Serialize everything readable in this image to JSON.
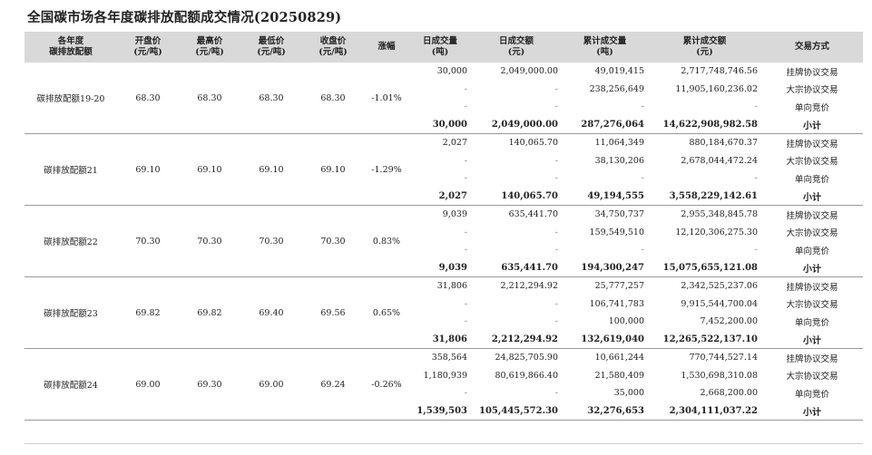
{
  "title": "全国碳市场各年度碳排放配额成交情况(20250829)",
  "header": {
    "product": [
      "各年度",
      "碳排放配额"
    ],
    "open": [
      "开盘价",
      "(元/吨)"
    ],
    "high": [
      "最高价",
      "(元/吨)"
    ],
    "low": [
      "最低价",
      "(元/吨)"
    ],
    "close": [
      "收盘价",
      "(元/吨)"
    ],
    "change": [
      "涨幅",
      ""
    ],
    "day_vol": [
      "日成交量",
      "(吨)"
    ],
    "day_amt": [
      "日成交额",
      "(元)"
    ],
    "cum_vol": [
      "累计成交量",
      "(吨)"
    ],
    "cum_amt": [
      "累计成交额",
      "(元)"
    ],
    "method": [
      "交易方式",
      ""
    ]
  },
  "groups": [
    {
      "product": "碳排放配额19-20",
      "open": "68.30",
      "high": "68.30",
      "low": "68.30",
      "close": "68.30",
      "change": "-1.01%",
      "rows": [
        {
          "day_vol": "30,000",
          "day_amt": "2,049,000.00",
          "cum_vol": "49,019,415",
          "cum_amt": "2,717,748,746.56",
          "method": "挂牌协议交易"
        },
        {
          "day_vol": "-",
          "day_amt": "-",
          "cum_vol": "238,256,649",
          "cum_amt": "11,905,160,236.02",
          "method": "大宗协议交易"
        },
        {
          "day_vol": "-",
          "day_amt": "-",
          "cum_vol": "-",
          "cum_amt": "-",
          "method": "单向竞价"
        },
        {
          "day_vol": "30,000",
          "day_amt": "2,049,000.00",
          "cum_vol": "287,276,064",
          "cum_amt": "14,622,908,982.58",
          "method": "小计"
        }
      ]
    },
    {
      "product": "碳排放配额21",
      "open": "69.10",
      "high": "69.10",
      "low": "69.10",
      "close": "69.10",
      "change": "-1.29%",
      "rows": [
        {
          "day_vol": "2,027",
          "day_amt": "140,065.70",
          "cum_vol": "11,064,349",
          "cum_amt": "880,184,670.37",
          "method": "挂牌协议交易"
        },
        {
          "day_vol": "-",
          "day_amt": "-",
          "cum_vol": "38,130,206",
          "cum_amt": "2,678,044,472.24",
          "method": "大宗协议交易"
        },
        {
          "day_vol": "-",
          "day_amt": "-",
          "cum_vol": "-",
          "cum_amt": "-",
          "method": "单向竞价"
        },
        {
          "day_vol": "2,027",
          "day_amt": "140,065.70",
          "cum_vol": "49,194,555",
          "cum_amt": "3,558,229,142.61",
          "method": "小计"
        }
      ]
    },
    {
      "product": "碳排放配额22",
      "open": "70.30",
      "high": "70.30",
      "low": "70.30",
      "close": "70.30",
      "change": "0.83%",
      "rows": [
        {
          "day_vol": "9,039",
          "day_amt": "635,441.70",
          "cum_vol": "34,750,737",
          "cum_amt": "2,955,348,845.78",
          "method": "挂牌协议交易"
        },
        {
          "day_vol": "-",
          "day_amt": "-",
          "cum_vol": "159,549,510",
          "cum_amt": "12,120,306,275.30",
          "method": "大宗协议交易"
        },
        {
          "day_vol": "-",
          "day_amt": "-",
          "cum_vol": "-",
          "cum_amt": "-",
          "method": "单向竞价"
        },
        {
          "day_vol": "9,039",
          "day_amt": "635,441.70",
          "cum_vol": "194,300,247",
          "cum_amt": "15,075,655,121.08",
          "method": "小计"
        }
      ]
    },
    {
      "product": "碳排放配额23",
      "open": "69.82",
      "high": "69.82",
      "low": "69.40",
      "close": "69.56",
      "change": "0.65%",
      "rows": [
        {
          "day_vol": "31,806",
          "day_amt": "2,212,294.92",
          "cum_vol": "25,777,257",
          "cum_amt": "2,342,525,237.06",
          "method": "挂牌协议交易"
        },
        {
          "day_vol": "-",
          "day_amt": "-",
          "cum_vol": "106,741,783",
          "cum_amt": "9,915,544,700.04",
          "method": "大宗协议交易"
        },
        {
          "day_vol": "-",
          "day_amt": "-",
          "cum_vol": "100,000",
          "cum_amt": "7,452,200.00",
          "method": "单向竞价"
        },
        {
          "day_vol": "31,806",
          "day_amt": "2,212,294.92",
          "cum_vol": "132,619,040",
          "cum_amt": "12,265,522,137.10",
          "method": "小计"
        }
      ]
    },
    {
      "product": "碳排放配额24",
      "open": "69.00",
      "high": "69.30",
      "low": "69.00",
      "close": "69.24",
      "change": "-0.26%",
      "rows": [
        {
          "day_vol": "358,564",
          "day_amt": "24,825,705.90",
          "cum_vol": "10,661,244",
          "cum_amt": "770,744,527.14",
          "method": "挂牌协议交易"
        },
        {
          "day_vol": "1,180,939",
          "day_amt": "80,619,866.40",
          "cum_vol": "21,580,409",
          "cum_amt": "1,530,698,310.08",
          "method": "大宗协议交易"
        },
        {
          "day_vol": "-",
          "day_amt": "-",
          "cum_vol": "35,000",
          "cum_amt": "2,668,200.00",
          "method": "单向竞价"
        },
        {
          "day_vol": "1,539,503",
          "day_amt": "105,445,572.30",
          "cum_vol": "32,276,653",
          "cum_amt": "2,304,111,037.22",
          "method": "小计"
        }
      ]
    }
  ]
}
